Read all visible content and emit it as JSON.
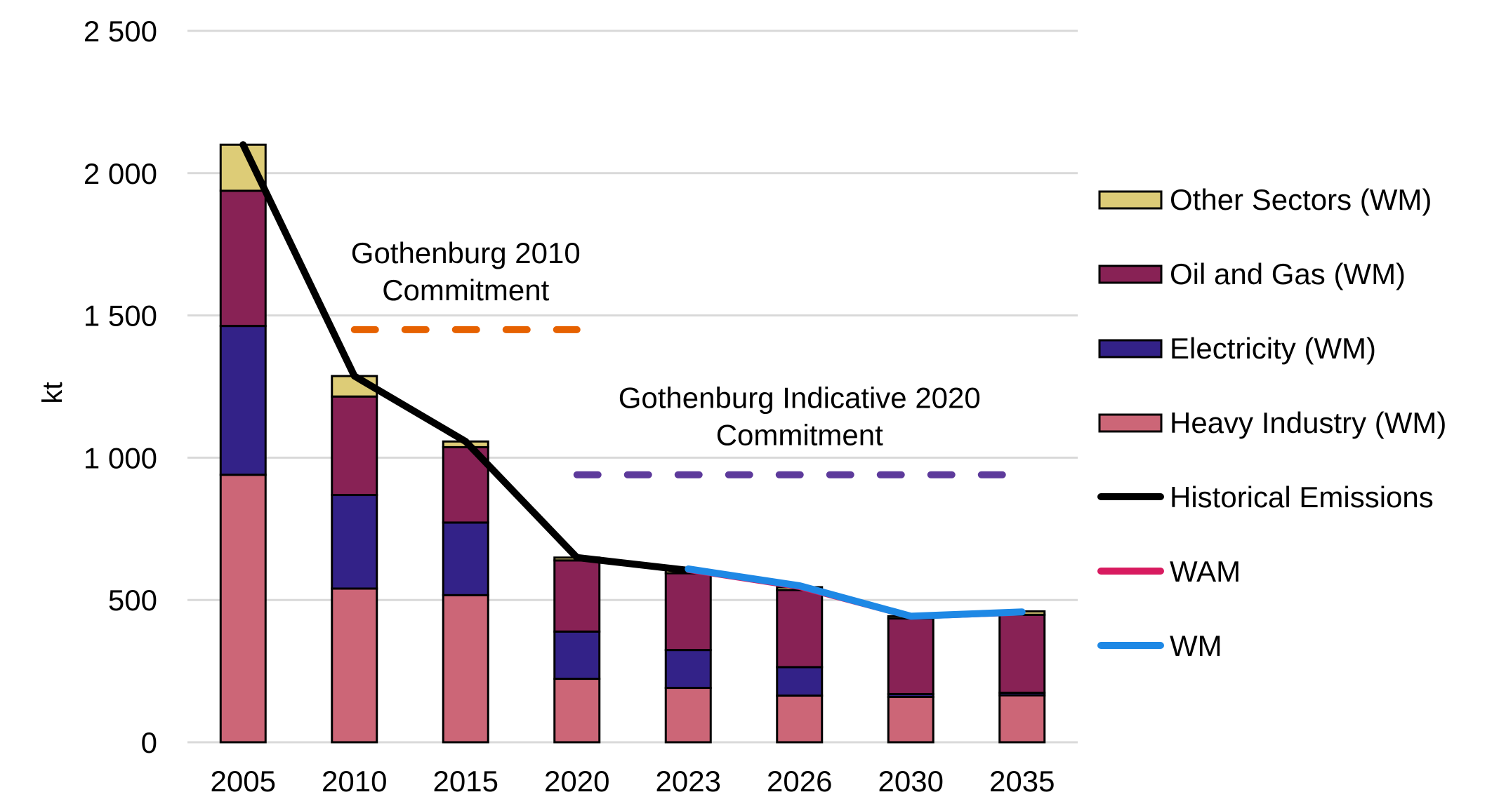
{
  "chart_data": {
    "type": "bar",
    "stacked": true,
    "title": "",
    "xlabel": "",
    "ylabel": "kt",
    "ylim": [
      0,
      2500
    ],
    "yticks": [
      0,
      500,
      1000,
      1500,
      2000,
      2500
    ],
    "ytick_labels": [
      "0",
      "500",
      "1 000",
      "1 500",
      "2 000",
      "2 500"
    ],
    "grid": true,
    "legend_position": "right",
    "categories": [
      "2005",
      "2010",
      "2015",
      "2020",
      "2023",
      "2026",
      "2030",
      "2035"
    ],
    "series": [
      {
        "name": "Heavy Industry (WM)",
        "kind": "bar",
        "color": "#CC6677",
        "values": [
          940,
          540,
          517,
          223,
          191,
          164,
          159,
          165
        ]
      },
      {
        "name": "Electricity (WM)",
        "kind": "bar",
        "color": "#332288",
        "values": [
          523,
          329,
          255,
          166,
          133,
          100,
          10,
          9
        ]
      },
      {
        "name": "Oil and Gas (WM)",
        "kind": "bar",
        "color": "#882255",
        "values": [
          475,
          346,
          265,
          250,
          270,
          271,
          266,
          274
        ]
      },
      {
        "name": "Other Sectors (WM)",
        "kind": "bar",
        "color": "#DDCC77",
        "values": [
          162,
          72,
          20,
          10,
          10,
          10,
          8,
          12
        ]
      }
    ],
    "lines": [
      {
        "name": "Historical Emissions",
        "color": "#000000",
        "categories": [
          "2005",
          "2010",
          "2015",
          "2020",
          "2023"
        ],
        "values": [
          2100,
          1287,
          1057,
          649,
          604
        ]
      },
      {
        "name": "WAM",
        "color": "#D81B60",
        "categories": [
          "2023",
          "2026",
          "2030",
          "2035"
        ],
        "values": [
          605,
          545,
          441,
          455
        ]
      },
      {
        "name": "WM",
        "color": "#1E88E5",
        "categories": [
          "2023",
          "2026",
          "2030",
          "2035"
        ],
        "values": [
          609,
          550,
          443,
          458
        ]
      }
    ],
    "reference_lines": [
      {
        "name": "Gothenburg 2010 Commitment",
        "label_lines": [
          "Gothenburg 2010",
          "Commitment"
        ],
        "value": 1450,
        "from": "2010",
        "to": "2020",
        "color": "#E66100",
        "style": "dashed"
      },
      {
        "name": "Gothenburg Indicative 2020 Commitment",
        "label_lines": [
          "Gothenburg Indicative 2020",
          "Commitment"
        ],
        "value": 940,
        "from": "2020",
        "to": "2035",
        "color": "#5D3A9B",
        "style": "dashed"
      }
    ],
    "legend": [
      {
        "label": "Other Sectors (WM)",
        "type": "box",
        "color": "#DDCC77"
      },
      {
        "label": "Oil and Gas (WM)",
        "type": "box",
        "color": "#882255"
      },
      {
        "label": "Electricity (WM)",
        "type": "box",
        "color": "#332288"
      },
      {
        "label": "Heavy Industry (WM)",
        "type": "box",
        "color": "#CC6677"
      },
      {
        "label": "Historical Emissions",
        "type": "line",
        "color": "#000000"
      },
      {
        "label": "WAM",
        "type": "line",
        "color": "#D81B60"
      },
      {
        "label": "WM",
        "type": "line",
        "color": "#1E88E5"
      }
    ]
  }
}
